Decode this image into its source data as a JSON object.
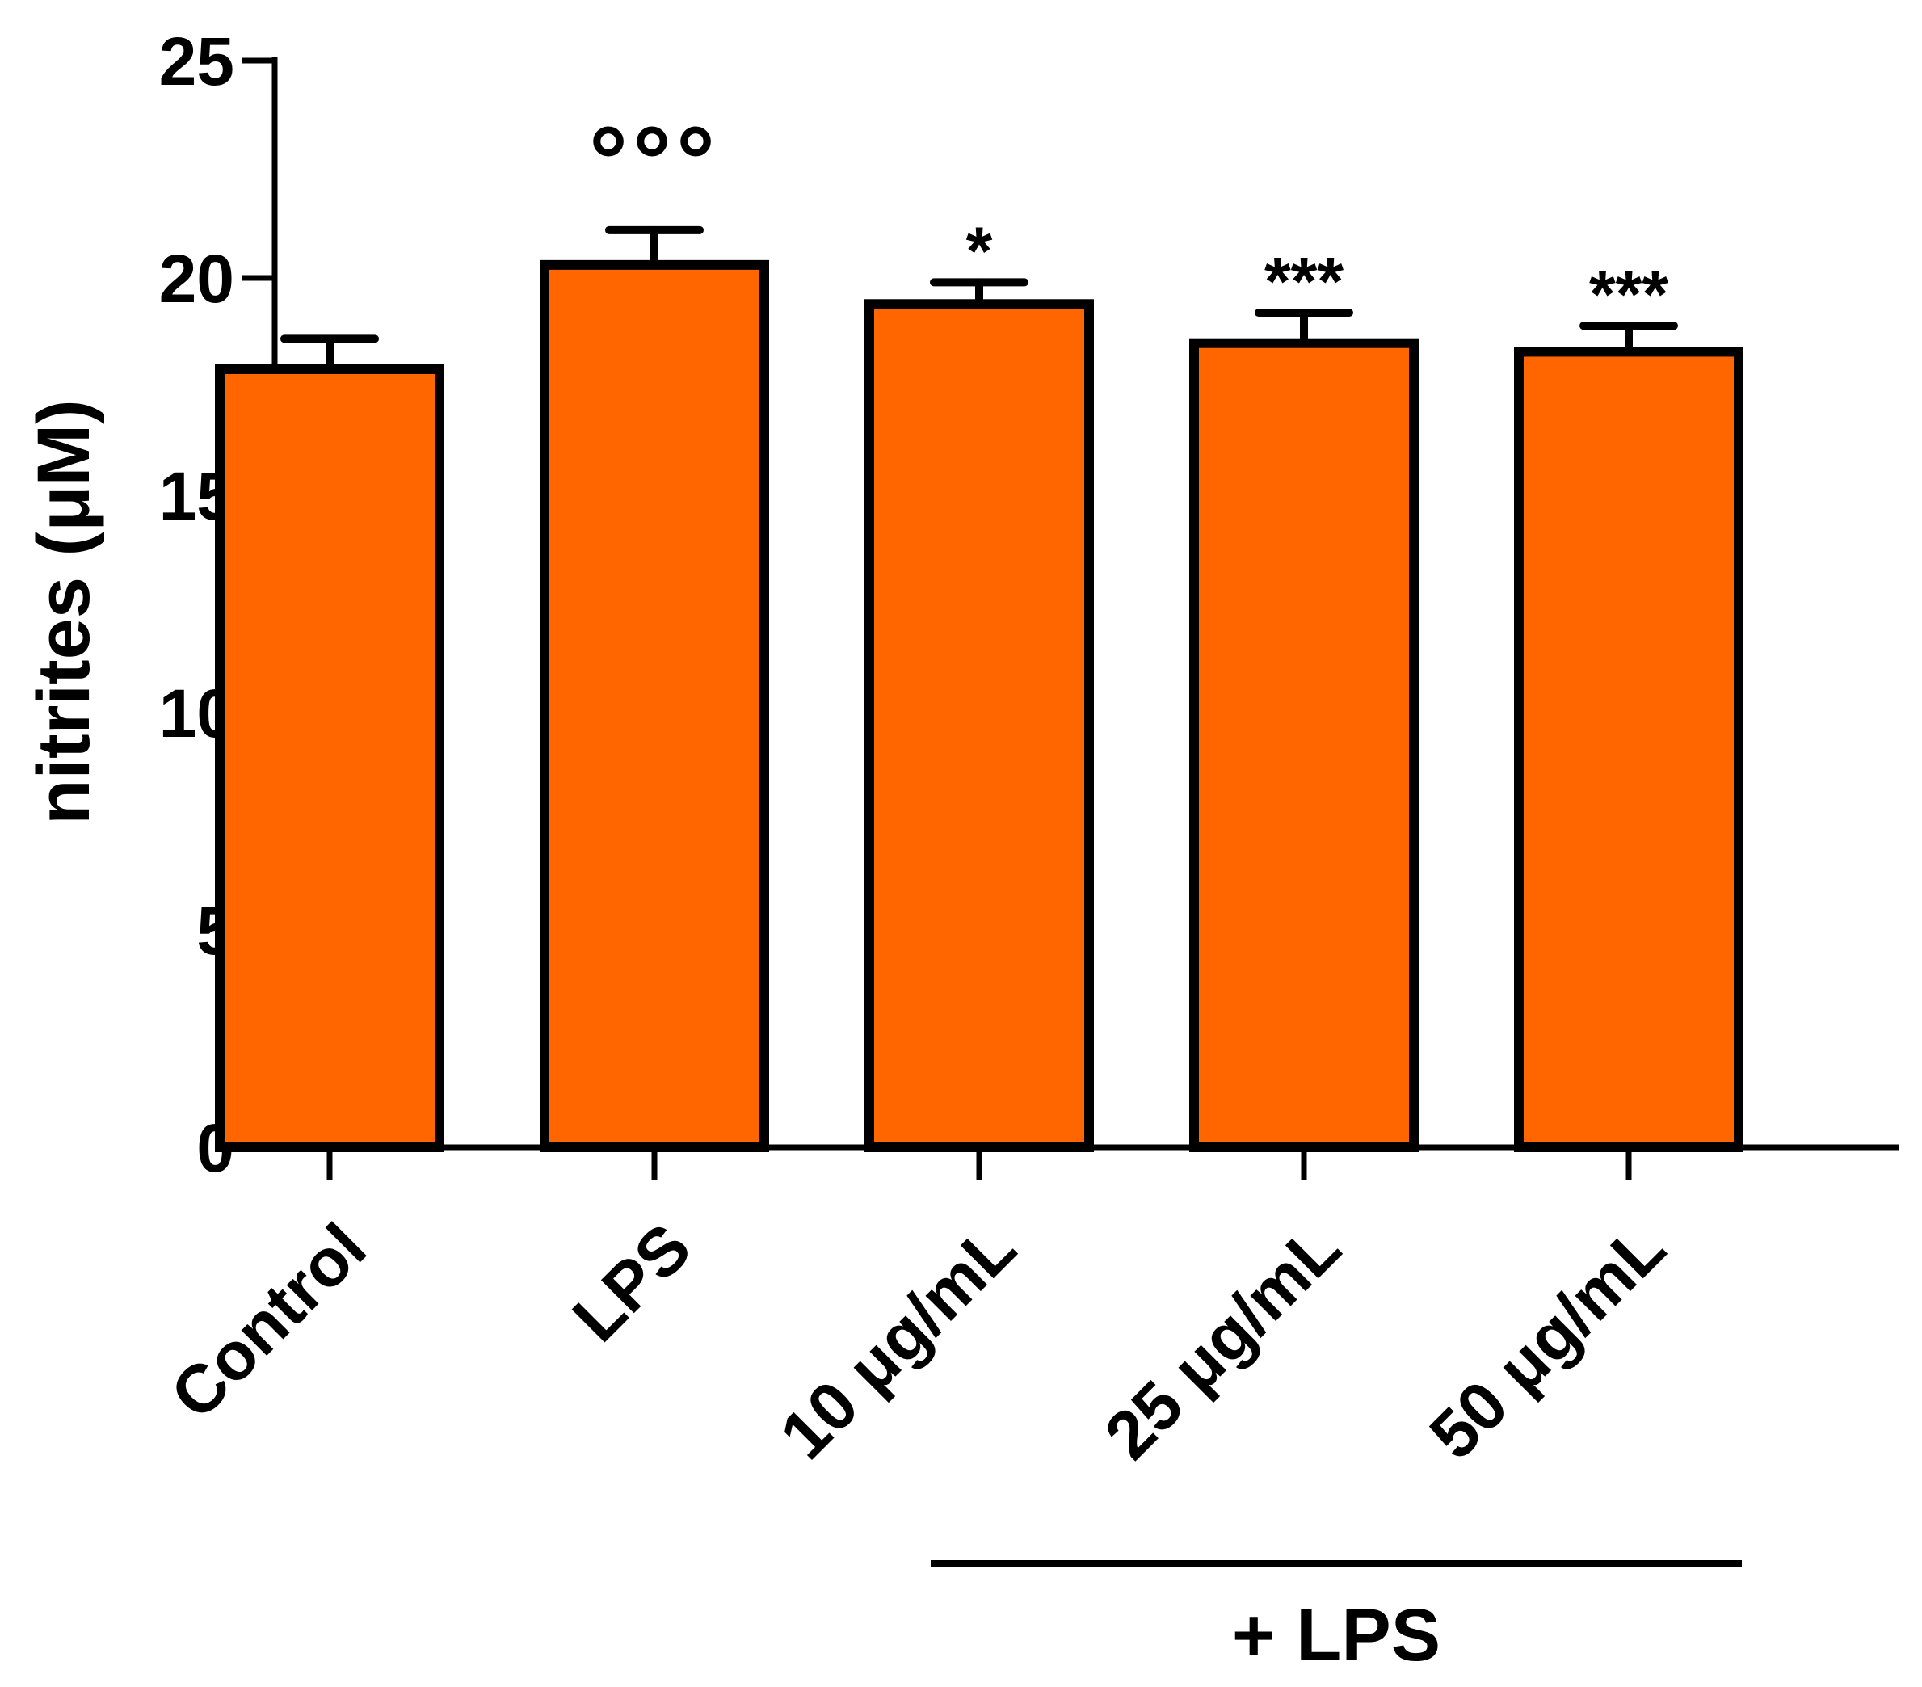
{
  "chart_data": {
    "type": "bar",
    "title": "",
    "xlabel": "",
    "ylabel": "nitrites (μM)",
    "ylim": [
      0,
      25
    ],
    "yticks": [
      0,
      5,
      10,
      15,
      20,
      25
    ],
    "grid": false,
    "legend": "none",
    "bar_color": "#ff6600",
    "categories": [
      "Control",
      "LPS",
      "10 μg/mL",
      "25 μg/mL",
      "50 μg/mL"
    ],
    "values": [
      17.9,
      20.3,
      19.4,
      18.5,
      18.3
    ],
    "errors": [
      0.7,
      0.8,
      0.5,
      0.7,
      0.6
    ],
    "annotations": [
      "",
      "°°°",
      "*",
      "***",
      "***"
    ],
    "group_label": "+ LPS",
    "group_categories": [
      "10 μg/mL",
      "25 μg/mL",
      "50 μg/mL"
    ]
  }
}
